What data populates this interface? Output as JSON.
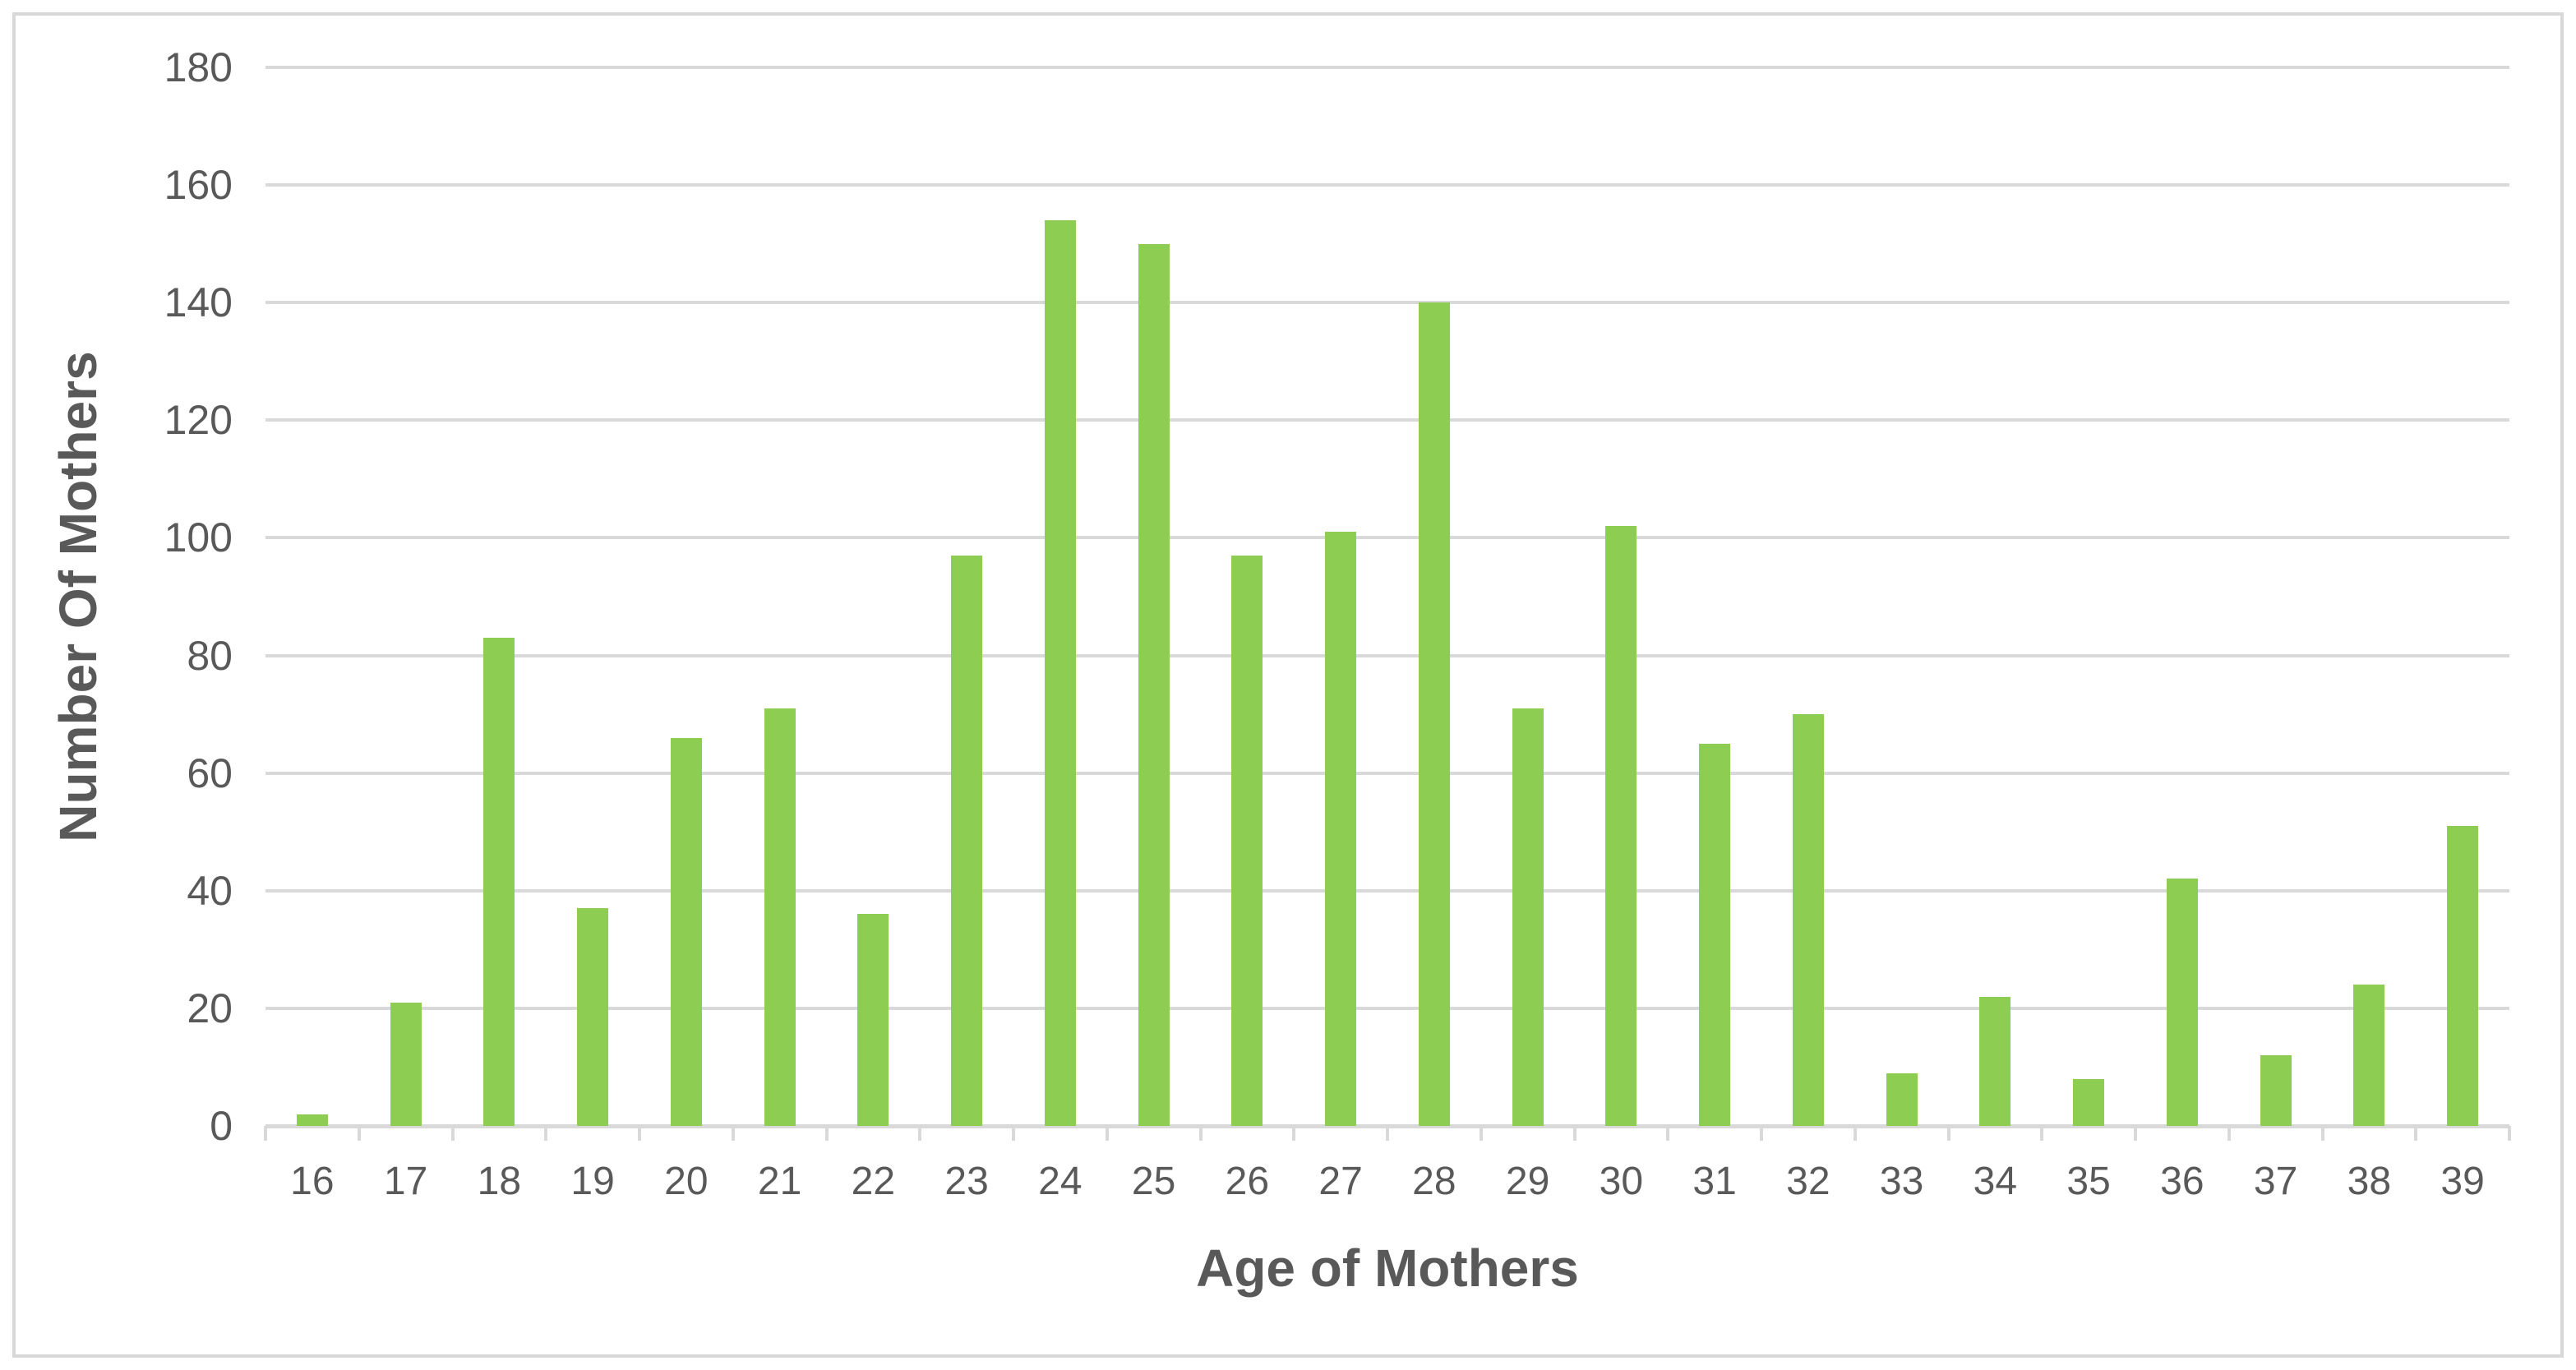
{
  "chart_data": {
    "type": "bar",
    "title": "",
    "xlabel": "Age of Mothers",
    "ylabel": "Number Of Mothers",
    "categories": [
      "16",
      "17",
      "18",
      "19",
      "20",
      "21",
      "22",
      "23",
      "24",
      "25",
      "26",
      "27",
      "28",
      "29",
      "30",
      "31",
      "32",
      "33",
      "34",
      "35",
      "36",
      "37",
      "38",
      "39"
    ],
    "values": [
      2,
      21,
      83,
      37,
      66,
      71,
      36,
      97,
      154,
      150,
      97,
      101,
      140,
      71,
      102,
      65,
      70,
      9,
      22,
      8,
      42,
      12,
      24,
      51
    ],
    "ylim": [
      0,
      180
    ],
    "ytick_step": 20,
    "ytick_labels": [
      "0",
      "20",
      "40",
      "60",
      "80",
      "100",
      "120",
      "140",
      "160",
      "180"
    ],
    "grid": true,
    "legend": false,
    "colors": {
      "bar": "#8DCD52",
      "gridline": "#D9D9D9",
      "axis_line": "#D9D9D9",
      "tick_label": "#595959",
      "axis_title": "#595959",
      "frame_border": "#D8D8D8",
      "background": "#FFFFFF"
    }
  }
}
